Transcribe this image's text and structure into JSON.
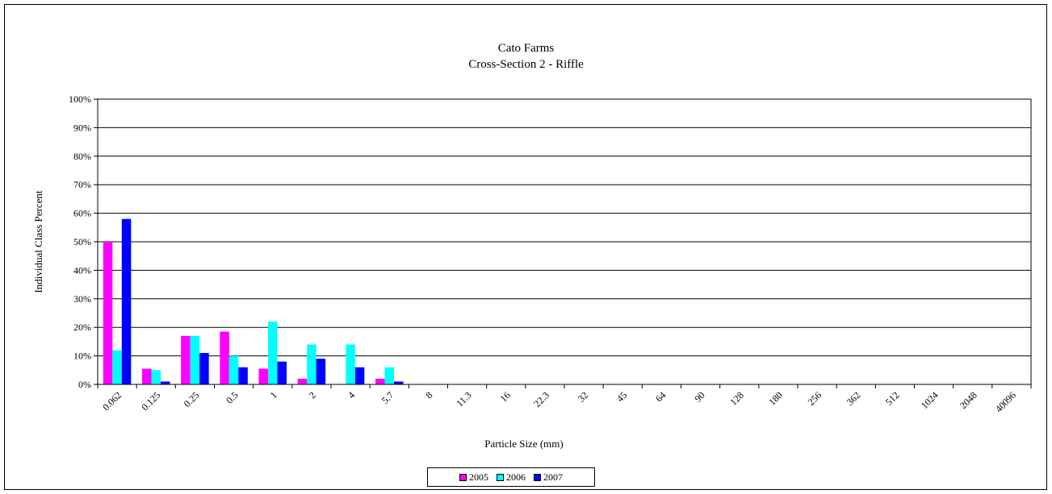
{
  "chart_data": {
    "type": "bar",
    "title": "Cato Farms",
    "subtitle": "Cross-Section 2 - Riffle",
    "xlabel": "Particle Size (mm)",
    "ylabel": "Individual Class Percent",
    "ylim": [
      0,
      100
    ],
    "yticks": [
      "0%",
      "10%",
      "20%",
      "30%",
      "40%",
      "50%",
      "60%",
      "70%",
      "80%",
      "90%",
      "100%"
    ],
    "grid": true,
    "legend_position": "bottom",
    "categories": [
      "0.062",
      "0.125",
      "0.25",
      "0.5",
      "1",
      "2",
      "4",
      "5.7",
      "8",
      "11.3",
      "16",
      "22.3",
      "32",
      "45",
      "64",
      "90",
      "128",
      "180",
      "256",
      "362",
      "512",
      "1024",
      "2048",
      "40096"
    ],
    "series": [
      {
        "name": "2005",
        "color": "#ff00ff",
        "values": [
          50,
          5.5,
          17,
          18.5,
          5.5,
          2,
          0,
          2,
          0,
          0,
          0,
          0,
          0,
          0,
          0,
          0,
          0,
          0,
          0,
          0,
          0,
          0,
          0,
          0
        ]
      },
      {
        "name": "2006",
        "color": "#00ffff",
        "values": [
          12,
          5,
          17,
          10,
          22,
          14,
          14,
          6,
          0,
          0,
          0,
          0,
          0,
          0,
          0,
          0,
          0,
          0,
          0,
          0,
          0,
          0,
          0,
          0
        ]
      },
      {
        "name": "2007",
        "color": "#0000ff",
        "values": [
          58,
          1,
          11,
          6,
          8,
          9,
          6,
          1,
          0,
          0,
          0,
          0,
          0,
          0,
          0,
          0,
          0,
          0,
          0,
          0,
          0,
          0,
          0,
          0
        ]
      }
    ]
  }
}
